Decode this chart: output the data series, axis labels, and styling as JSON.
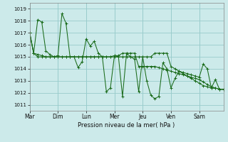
{
  "xlabel": "Pression niveau de la mer( hPa )",
  "background_color": "#cceaea",
  "grid_color": "#99cccc",
  "line_color": "#1a6b1a",
  "ylim": [
    1010.5,
    1019.5
  ],
  "yticks": [
    1011,
    1012,
    1013,
    1014,
    1015,
    1016,
    1017,
    1018,
    1019
  ],
  "x_labels": [
    "Mar",
    "Dim",
    "Lun",
    "Mer",
    "Jeu",
    "Ven",
    "Sam"
  ],
  "x_ticks": [
    0,
    7,
    14,
    21,
    28,
    35,
    42
  ],
  "n_points": 49,
  "series": [
    [
      1017.0,
      1015.3,
      1015.2,
      1015.1,
      1015.0,
      1015.0,
      1015.0,
      1015.0,
      1015.0,
      1015.0,
      1015.0,
      1015.0,
      1015.0,
      1015.0,
      1015.0,
      1015.0,
      1015.0,
      1015.0,
      1015.0,
      1015.0,
      1015.0,
      1015.0,
      1015.0,
      1015.0,
      1015.0,
      1015.0,
      1015.0,
      1015.0,
      1015.0,
      1015.0,
      1015.0,
      1015.3,
      1015.3,
      1015.3,
      1015.3,
      1014.2,
      1014.0,
      1013.8,
      1013.6,
      1013.4,
      1013.2,
      1013.0,
      1012.8,
      1012.6,
      1012.5,
      1012.4,
      1012.4,
      1012.3,
      1012.3
    ],
    [
      1017.0,
      1015.3,
      1018.1,
      1017.9,
      1015.5,
      1015.2,
      1015.0,
      1015.1,
      1018.6,
      1017.8,
      1015.0,
      1015.0,
      1014.1,
      1014.6,
      1016.5,
      1015.9,
      1016.3,
      1015.3,
      1015.0,
      1012.1,
      1012.4,
      1015.1,
      1015.0,
      1011.7,
      1015.3,
      1015.0,
      1014.8,
      1012.1,
      1015.0,
      1013.0,
      1011.8,
      1011.5,
      1011.7,
      1014.5,
      1014.0,
      1012.4,
      1013.2,
      1013.8,
      1013.7,
      1013.6,
      1013.5,
      1013.4,
      1013.3,
      1014.4,
      1014.0,
      1012.4,
      1013.1,
      1012.3,
      1012.3
    ],
    [
      1017.0,
      1015.3,
      1015.0,
      1015.0,
      1015.0,
      1015.0,
      1015.0,
      1015.0,
      1015.0,
      1015.0,
      1015.0,
      1015.0,
      1015.0,
      1015.0,
      1015.0,
      1015.0,
      1015.0,
      1015.0,
      1015.0,
      1015.0,
      1015.0,
      1015.1,
      1015.1,
      1015.3,
      1015.3,
      1015.3,
      1015.3,
      1014.2,
      1014.2,
      1014.2,
      1014.2,
      1014.2,
      1014.1,
      1014.0,
      1013.9,
      1013.8,
      1013.7,
      1013.6,
      1013.5,
      1013.4,
      1013.3,
      1013.2,
      1013.1,
      1012.9,
      1012.7,
      1012.5,
      1012.4,
      1012.3,
      1012.3
    ]
  ]
}
